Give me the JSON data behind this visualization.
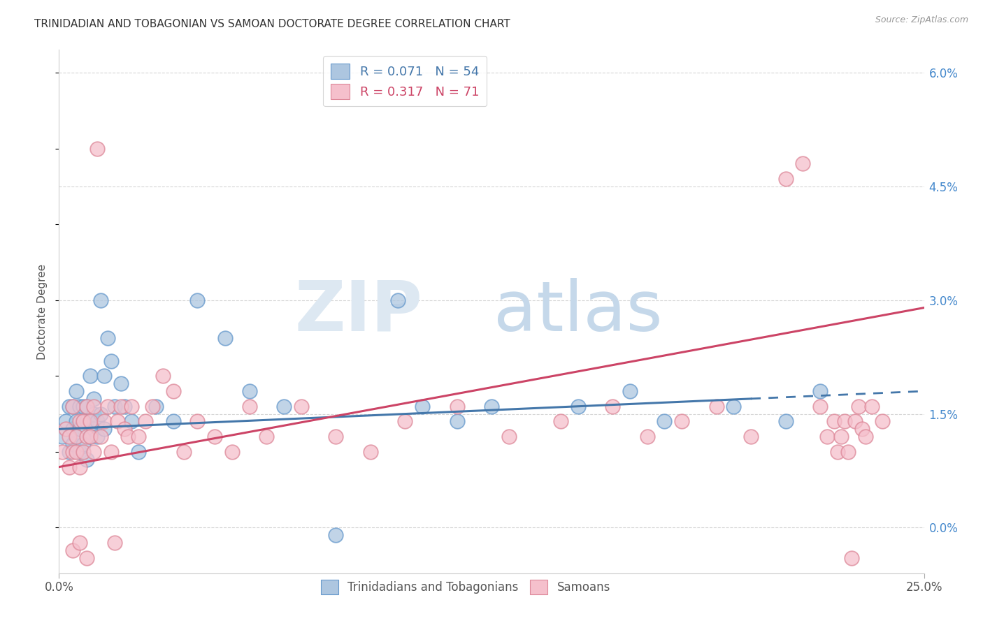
{
  "title": "TRINIDADIAN AND TOBAGONIAN VS SAMOAN DOCTORATE DEGREE CORRELATION CHART",
  "source_text": "Source: ZipAtlas.com",
  "ylabel": "Doctorate Degree",
  "xlim": [
    0.0,
    0.25
  ],
  "ylim": [
    -0.006,
    0.063
  ],
  "xticks": [
    0.0,
    0.25
  ],
  "xticklabels": [
    "0.0%",
    "25.0%"
  ],
  "yticks_right": [
    0.0,
    0.015,
    0.03,
    0.045,
    0.06
  ],
  "yticklabels_right": [
    "0.0%",
    "1.5%",
    "3.0%",
    "4.5%",
    "6.0%"
  ],
  "grid_color": "#cccccc",
  "background_color": "#ffffff",
  "blue_color": "#adc6e0",
  "blue_edge_color": "#6699cc",
  "blue_line_color": "#4477aa",
  "pink_color": "#f5c0cc",
  "pink_edge_color": "#dd8899",
  "pink_line_color": "#cc4466",
  "legend_blue_label": "R = 0.071   N = 54",
  "legend_pink_label": "R = 0.317   N = 71",
  "legend_label_blue": "Trinidadians and Tobagonians",
  "legend_label_pink": "Samoans",
  "blue_x": [
    0.001,
    0.002,
    0.003,
    0.003,
    0.004,
    0.004,
    0.004,
    0.005,
    0.005,
    0.005,
    0.006,
    0.006,
    0.006,
    0.007,
    0.007,
    0.007,
    0.008,
    0.008,
    0.008,
    0.009,
    0.009,
    0.01,
    0.01,
    0.01,
    0.011,
    0.011,
    0.012,
    0.012,
    0.013,
    0.013,
    0.014,
    0.015,
    0.016,
    0.018,
    0.019,
    0.021,
    0.023,
    0.028,
    0.033,
    0.04,
    0.048,
    0.055,
    0.065,
    0.08,
    0.098,
    0.105,
    0.115,
    0.125,
    0.15,
    0.165,
    0.175,
    0.195,
    0.21,
    0.22
  ],
  "blue_y": [
    0.012,
    0.014,
    0.01,
    0.016,
    0.013,
    0.011,
    0.016,
    0.014,
    0.012,
    0.018,
    0.01,
    0.013,
    0.016,
    0.014,
    0.011,
    0.016,
    0.009,
    0.014,
    0.016,
    0.012,
    0.02,
    0.013,
    0.017,
    0.015,
    0.014,
    0.012,
    0.03,
    0.015,
    0.02,
    0.013,
    0.025,
    0.022,
    0.016,
    0.019,
    0.016,
    0.014,
    0.01,
    0.016,
    0.014,
    0.03,
    0.025,
    0.018,
    0.016,
    -0.001,
    0.03,
    0.016,
    0.014,
    0.016,
    0.016,
    0.018,
    0.014,
    0.016,
    0.014,
    0.018
  ],
  "pink_x": [
    0.001,
    0.002,
    0.003,
    0.003,
    0.004,
    0.004,
    0.004,
    0.005,
    0.005,
    0.006,
    0.006,
    0.006,
    0.007,
    0.007,
    0.008,
    0.008,
    0.008,
    0.009,
    0.009,
    0.01,
    0.01,
    0.011,
    0.012,
    0.013,
    0.014,
    0.015,
    0.016,
    0.017,
    0.018,
    0.019,
    0.02,
    0.021,
    0.023,
    0.025,
    0.027,
    0.03,
    0.033,
    0.036,
    0.04,
    0.045,
    0.05,
    0.055,
    0.06,
    0.07,
    0.08,
    0.09,
    0.1,
    0.115,
    0.13,
    0.145,
    0.16,
    0.17,
    0.18,
    0.19,
    0.2,
    0.21,
    0.215,
    0.22,
    0.222,
    0.224,
    0.225,
    0.226,
    0.227,
    0.228,
    0.229,
    0.23,
    0.231,
    0.232,
    0.233,
    0.235,
    0.238
  ],
  "pink_y": [
    0.01,
    0.013,
    0.008,
    0.012,
    0.016,
    0.01,
    -0.003,
    0.01,
    0.012,
    -0.002,
    0.014,
    0.008,
    0.014,
    0.01,
    0.012,
    -0.004,
    0.016,
    0.012,
    0.014,
    0.01,
    0.016,
    0.05,
    0.012,
    0.014,
    0.016,
    0.01,
    -0.002,
    0.014,
    0.016,
    0.013,
    0.012,
    0.016,
    0.012,
    0.014,
    0.016,
    0.02,
    0.018,
    0.01,
    0.014,
    0.012,
    0.01,
    0.016,
    0.012,
    0.016,
    0.012,
    0.01,
    0.014,
    0.016,
    0.012,
    0.014,
    0.016,
    0.012,
    0.014,
    0.016,
    0.012,
    0.046,
    0.048,
    0.016,
    0.012,
    0.014,
    0.01,
    0.012,
    0.014,
    0.01,
    -0.004,
    0.014,
    0.016,
    0.013,
    0.012,
    0.016,
    0.014
  ],
  "blue_trend": [
    0.013,
    0.018
  ],
  "pink_trend": [
    0.008,
    0.029
  ],
  "trend_x": [
    0.0,
    0.25
  ]
}
